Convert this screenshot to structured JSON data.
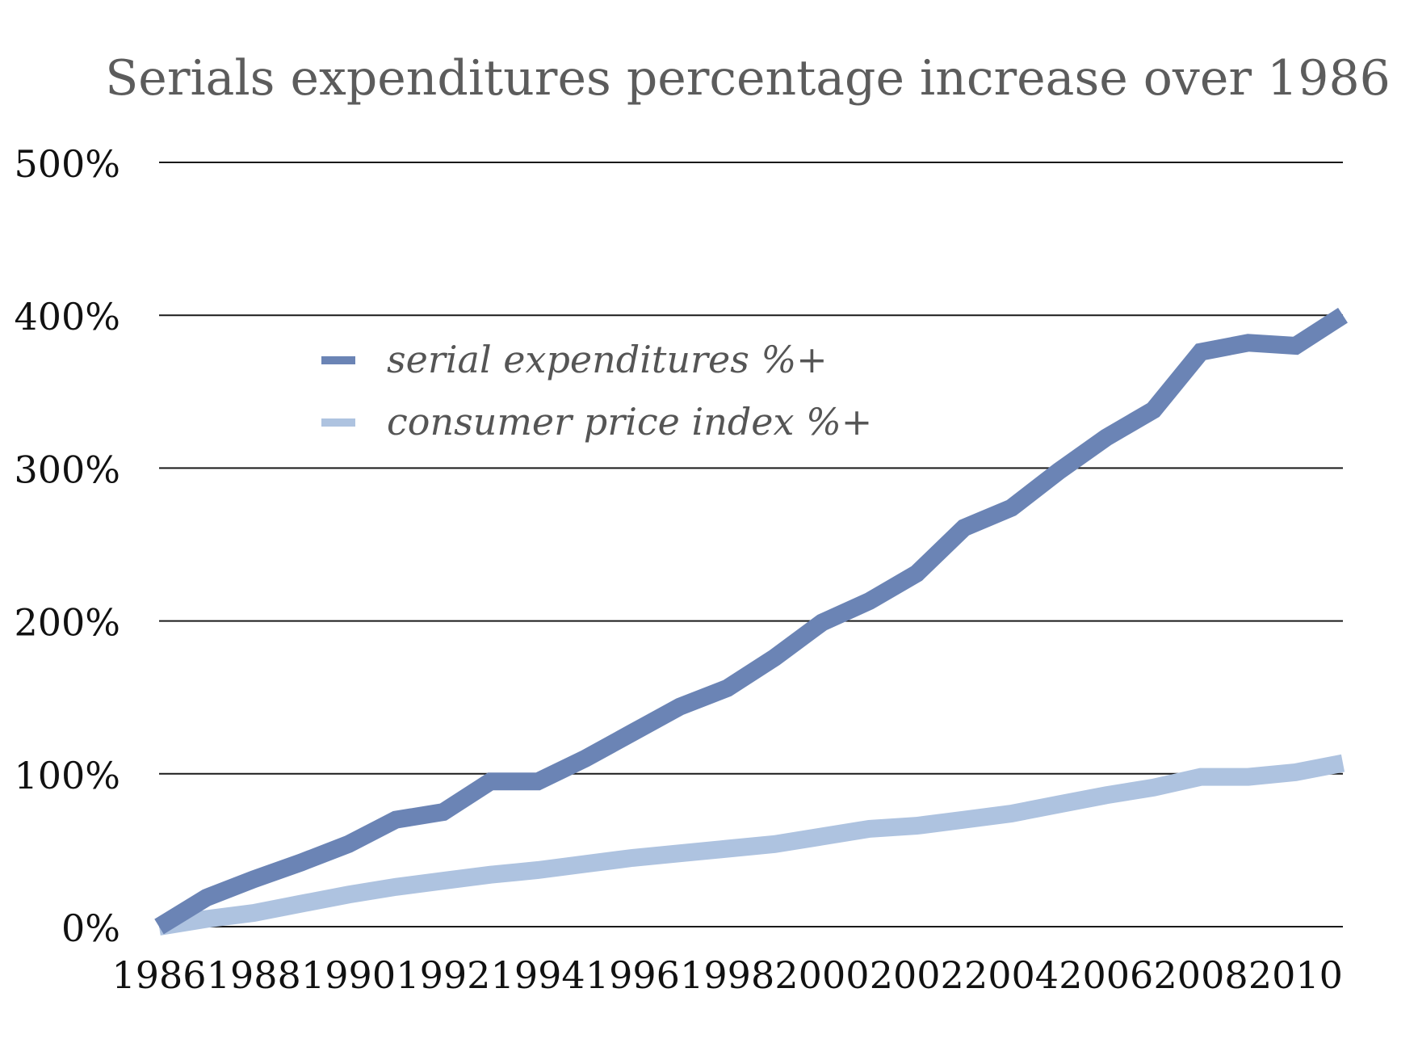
{
  "chart_data": {
    "type": "line",
    "title": "Serials expenditures percentage increase over 1986",
    "xlabel": "",
    "ylabel": "",
    "x": [
      1986,
      1987,
      1988,
      1989,
      1990,
      1991,
      1992,
      1993,
      1994,
      1995,
      1996,
      1997,
      1998,
      1999,
      2000,
      2001,
      2002,
      2003,
      2004,
      2005,
      2006,
      2007,
      2008,
      2009,
      2010,
      2011
    ],
    "xticks": [
      1986,
      1988,
      1990,
      1992,
      1994,
      1996,
      1998,
      2000,
      2002,
      2004,
      2006,
      2008,
      2010
    ],
    "xtick_labels": [
      "1986",
      "1988",
      "1990",
      "1992",
      "1994",
      "1996",
      "1998",
      "2000",
      "2002",
      "2004",
      "2006",
      "2008",
      "2010"
    ],
    "yticks": [
      0,
      100,
      200,
      300,
      400,
      500
    ],
    "ytick_labels": [
      "0%",
      "100%",
      "200%",
      "300%",
      "400%",
      "500%"
    ],
    "ylim": [
      0,
      500
    ],
    "grid": "horizontal",
    "legend_position": "upper-left",
    "series": [
      {
        "name": "serial expenditures %+",
        "color": "#6b84b5",
        "values": [
          0,
          19,
          31,
          42,
          54,
          70,
          75,
          95,
          95,
          110,
          127,
          144,
          156,
          176,
          199,
          213,
          231,
          261,
          274,
          298,
          320,
          338,
          376,
          382,
          380,
          400
        ]
      },
      {
        "name": "consumer price index %+",
        "color": "#aec3e0",
        "values": [
          0,
          5,
          9,
          15,
          21,
          26,
          30,
          34,
          37,
          41,
          45,
          48,
          51,
          54,
          59,
          64,
          66,
          70,
          74,
          80,
          86,
          91,
          98,
          98,
          101,
          107
        ]
      }
    ]
  }
}
